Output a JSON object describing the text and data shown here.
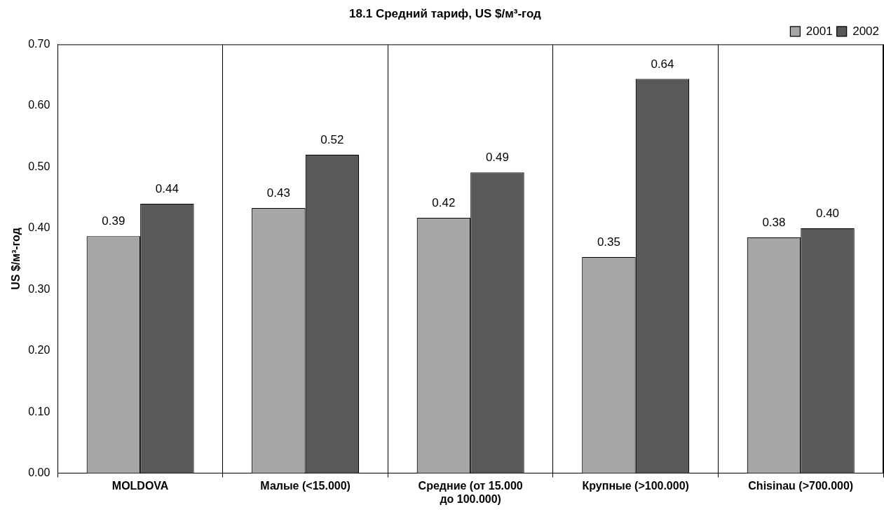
{
  "chart_data": {
    "type": "bar",
    "title": "18.1 Средний тариф, US $/м³-год",
    "ylabel": "US $/м³-год",
    "categories": [
      "MOLDOVA",
      "Малые (<15.000)",
      "Средние (от 15.000 до 100.000)",
      "Крупные (>100.000)",
      "Chisinau (>700.000)"
    ],
    "series": [
      {
        "name": "2001",
        "color": "#a6a6a6",
        "values": [
          0.387,
          0.433,
          0.417,
          0.353,
          0.385
        ],
        "value_labels": [
          "0.39",
          "0.43",
          "0.42",
          "0.35",
          "0.38"
        ]
      },
      {
        "name": "2002",
        "color": "#595959",
        "values": [
          0.44,
          0.52,
          0.491,
          0.644,
          0.4
        ],
        "value_labels": [
          "0.44",
          "0.52",
          "0.49",
          "0.64",
          "0.40"
        ]
      }
    ],
    "ylim": [
      0,
      0.7
    ],
    "yticks": [
      {
        "value": 0,
        "label": "0.00"
      },
      {
        "value": 0.1,
        "label": "0.10"
      },
      {
        "value": 0.2,
        "label": "0.20"
      },
      {
        "value": 0.3,
        "label": "0.30"
      },
      {
        "value": 0.4,
        "label": "0.40"
      },
      {
        "value": 0.5,
        "label": "0.50"
      },
      {
        "value": 0.6,
        "label": "0.60"
      },
      {
        "value": 0.7,
        "label": "0.70"
      }
    ],
    "grid": "x",
    "legend": "top right"
  }
}
